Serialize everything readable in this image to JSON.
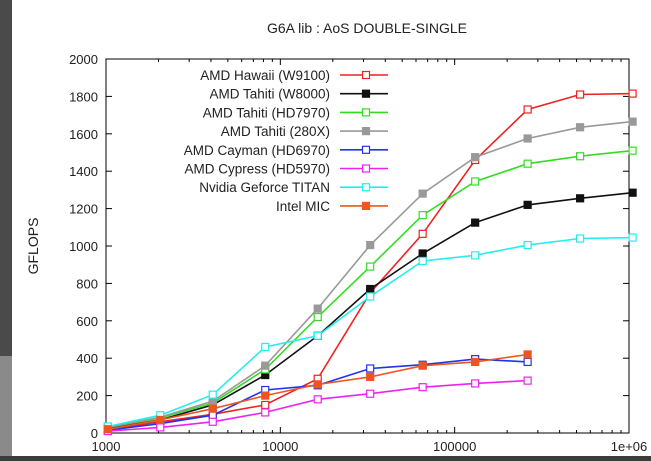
{
  "chart_data": {
    "type": "line",
    "title": "G6A lib : AoS DOUBLE-SINGLE",
    "xlabel": "",
    "ylabel": "GFLOPS",
    "xscale": "log",
    "xlim": [
      1000,
      1000000
    ],
    "ylim": [
      0,
      2000
    ],
    "xticks": [
      {
        "value": 1000,
        "label": "1000"
      },
      {
        "value": 10000,
        "label": "10000"
      },
      {
        "value": 100000,
        "label": "100000"
      },
      {
        "value": 1000000,
        "label": "1e+06"
      }
    ],
    "yticks": [
      0,
      200,
      400,
      600,
      800,
      1000,
      1200,
      1400,
      1600,
      1800,
      2000
    ],
    "grid": false,
    "legend_position": "top-left",
    "series": [
      {
        "name": "AMD Hawaii (W9100)",
        "color": "#ee2222",
        "marker": "open-square",
        "x": [
          1024,
          2048,
          4096,
          8192,
          16384,
          32768,
          65536,
          131072,
          262144,
          524288,
          1048576
        ],
        "y": [
          20,
          60,
          100,
          150,
          290,
          750,
          1065,
          1460,
          1730,
          1810,
          1815
        ]
      },
      {
        "name": "AMD Tahiti (W8000)",
        "color": "#111111",
        "marker": "filled-square",
        "x": [
          1024,
          2048,
          4096,
          8192,
          16384,
          32768,
          65536,
          131072,
          262144,
          524288,
          1048576
        ],
        "y": [
          25,
          70,
          150,
          310,
          520,
          770,
          960,
          1125,
          1220,
          1255,
          1285
        ]
      },
      {
        "name": "AMD Tahiti (HD7970)",
        "color": "#33dd22",
        "marker": "open-square",
        "x": [
          1024,
          2048,
          4096,
          8192,
          16384,
          32768,
          65536,
          131072,
          262144,
          524288,
          1048576
        ],
        "y": [
          30,
          80,
          160,
          340,
          620,
          890,
          1165,
          1345,
          1440,
          1480,
          1510
        ]
      },
      {
        "name": "AMD Tahiti (280X)",
        "color": "#999999",
        "marker": "filled-square",
        "x": [
          1024,
          2048,
          4096,
          8192,
          16384,
          32768,
          65536,
          131072,
          262144,
          524288,
          1048576
        ],
        "y": [
          30,
          85,
          170,
          360,
          665,
          1005,
          1280,
          1475,
          1575,
          1635,
          1665
        ]
      },
      {
        "name": "AMD Cayman (HD6970)",
        "color": "#2233ee",
        "marker": "open-square",
        "x": [
          1024,
          2048,
          4096,
          8192,
          16384,
          32768,
          65536,
          131072,
          262144
        ],
        "y": [
          15,
          50,
          95,
          230,
          255,
          345,
          365,
          395,
          380
        ]
      },
      {
        "name": "AMD Cypress (HD5970)",
        "color": "#ee22ee",
        "marker": "open-square",
        "x": [
          1024,
          2048,
          4096,
          8192,
          16384,
          32768,
          65536,
          131072,
          262144
        ],
        "y": [
          10,
          30,
          60,
          110,
          180,
          210,
          245,
          265,
          280
        ]
      },
      {
        "name": "Nvidia Geforce TITAN",
        "color": "#22eeee",
        "marker": "open-square",
        "x": [
          1024,
          2048,
          4096,
          8192,
          16384,
          32768,
          65536,
          131072,
          262144,
          524288,
          1048576
        ],
        "y": [
          35,
          95,
          205,
          460,
          520,
          730,
          920,
          950,
          1005,
          1040,
          1045
        ]
      },
      {
        "name": "Intel MIC",
        "color": "#ee5522",
        "marker": "filled-square",
        "x": [
          1024,
          2048,
          4096,
          8192,
          16384,
          32768,
          65536,
          131072,
          262144
        ],
        "y": [
          20,
          70,
          130,
          200,
          260,
          300,
          360,
          380,
          420
        ]
      }
    ]
  }
}
